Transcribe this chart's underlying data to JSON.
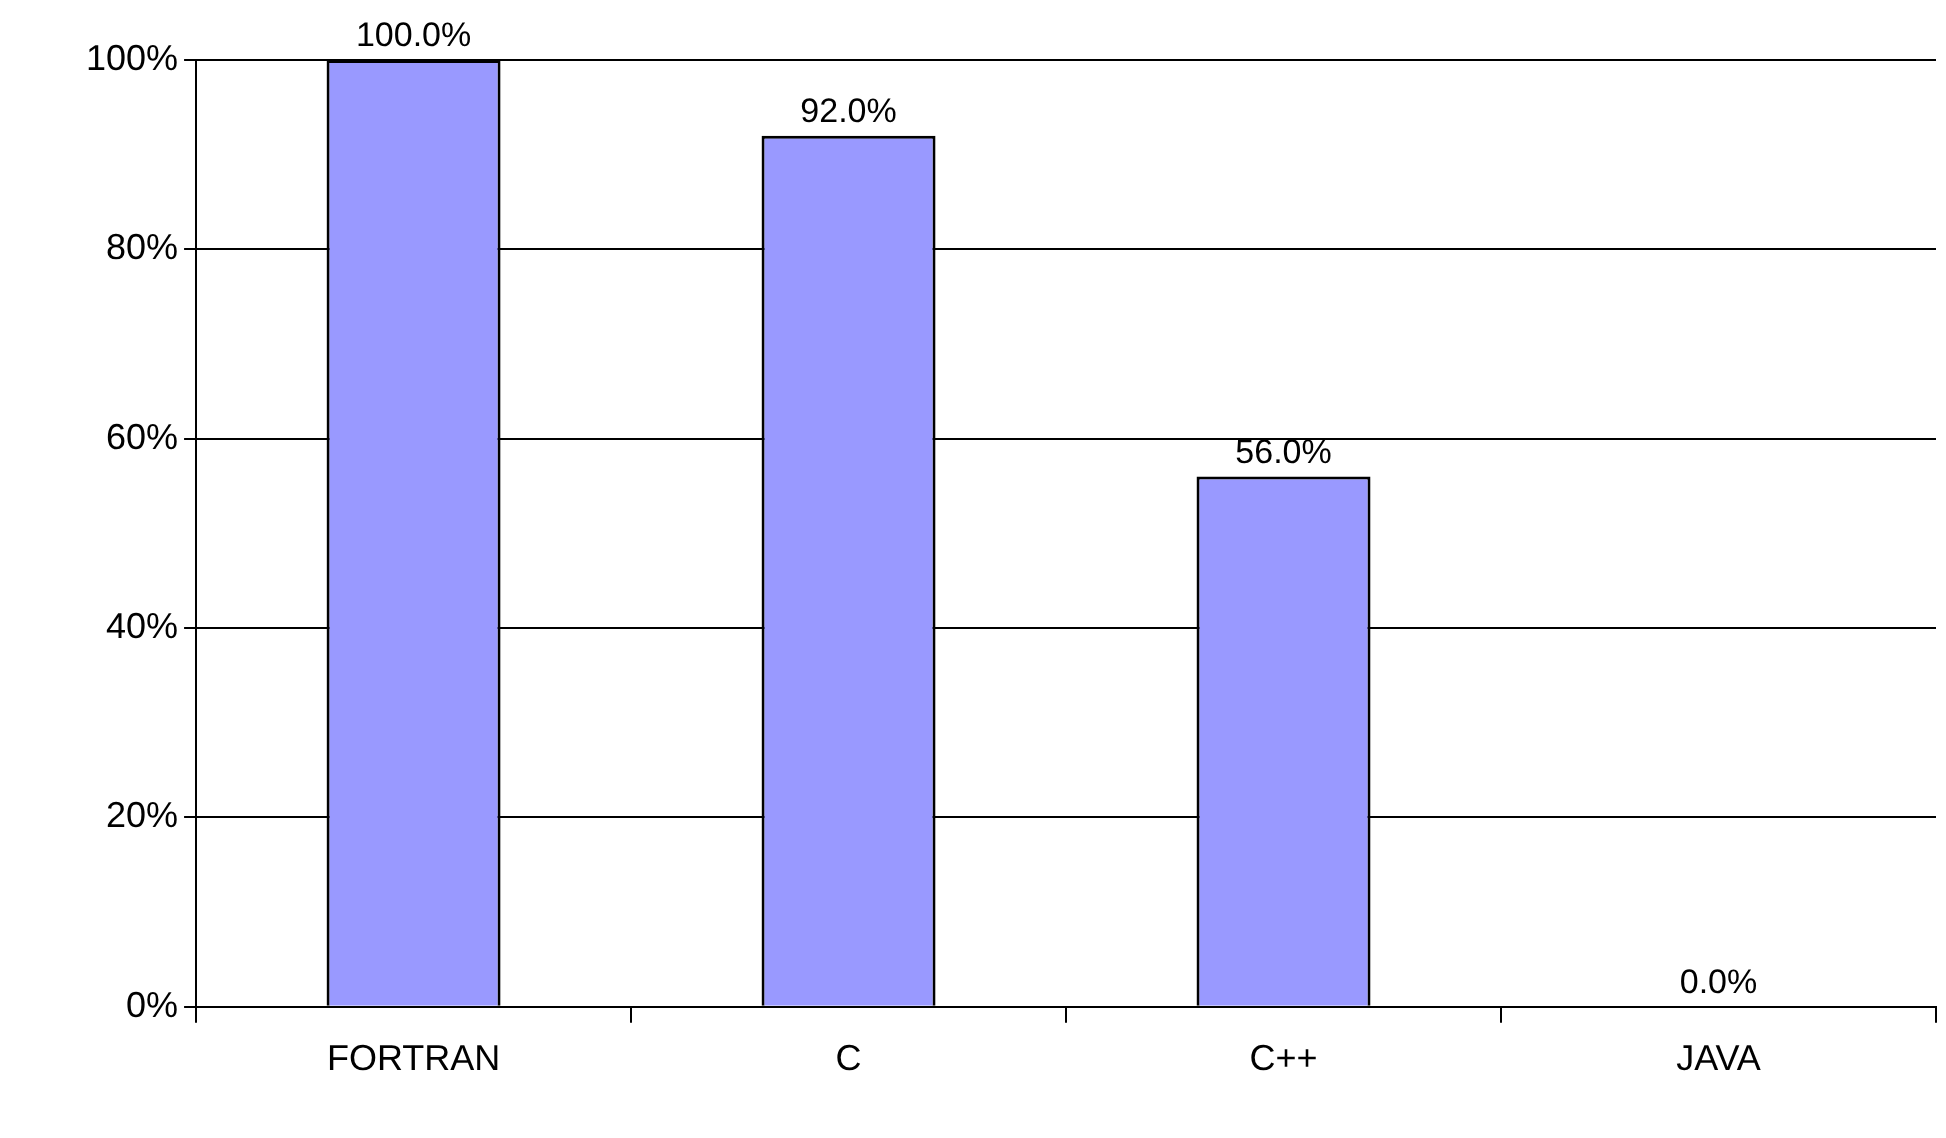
{
  "chart_data": {
    "type": "bar",
    "categories": [
      "FORTRAN",
      "C",
      "C++",
      "JAVA"
    ],
    "values": [
      100,
      92,
      56,
      0
    ],
    "value_labels": [
      "100.0%",
      "92.0%",
      "56.0%",
      "0.0%"
    ],
    "color": "#9999ff",
    "ylim": [
      0,
      100
    ],
    "yticks": [
      {
        "value": 0,
        "label": "0%"
      },
      {
        "value": 20,
        "label": "20%"
      },
      {
        "value": 40,
        "label": "40%"
      },
      {
        "value": 60,
        "label": "60%"
      },
      {
        "value": 80,
        "label": "80%"
      },
      {
        "value": 100,
        "label": "100%"
      }
    ],
    "grid": "y",
    "legend": false
  }
}
